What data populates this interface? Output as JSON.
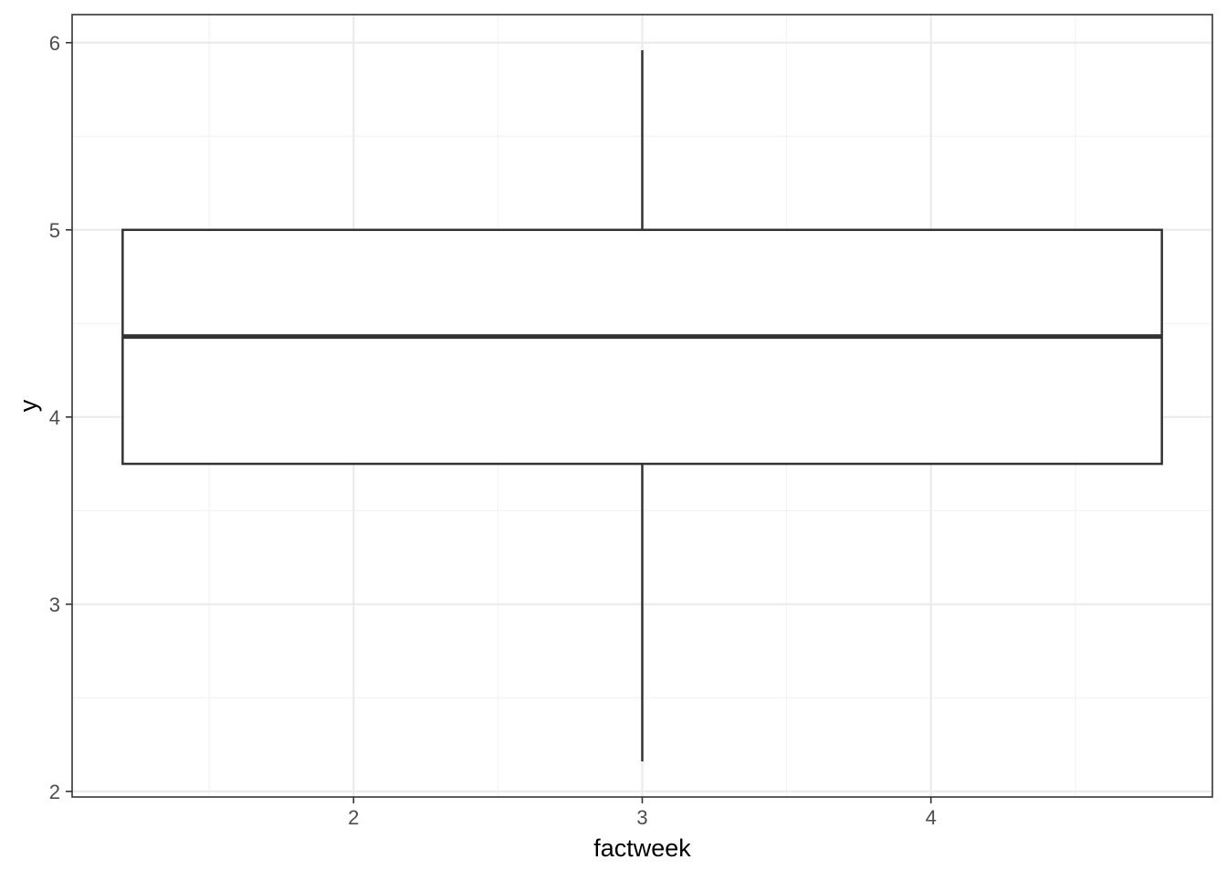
{
  "chart_data": {
    "type": "boxplot",
    "xlabel": "factweek",
    "ylabel": "y",
    "xlim": [
      1.025,
      4.975
    ],
    "ylim": [
      1.97,
      6.15
    ],
    "x_ticks": [
      2,
      3,
      4
    ],
    "x_tick_labels": [
      "2",
      "3",
      "4"
    ],
    "y_ticks": [
      2,
      3,
      4,
      5,
      6
    ],
    "y_tick_labels": [
      "2",
      "3",
      "4",
      "5",
      "6"
    ],
    "grid": true,
    "boxes": [
      {
        "x": 3,
        "x_extent": [
          1.2,
          4.8
        ],
        "whisker_low": 2.16,
        "q1": 3.75,
        "median": 4.43,
        "q3": 5.0,
        "whisker_high": 5.96
      }
    ],
    "colors": {
      "background": "#ffffff",
      "grid_major": "#ebebeb",
      "grid_minor": "#f3f3f3",
      "panel_border": "#333333",
      "box_line": "#333333",
      "box_fill": "#ffffff"
    }
  }
}
